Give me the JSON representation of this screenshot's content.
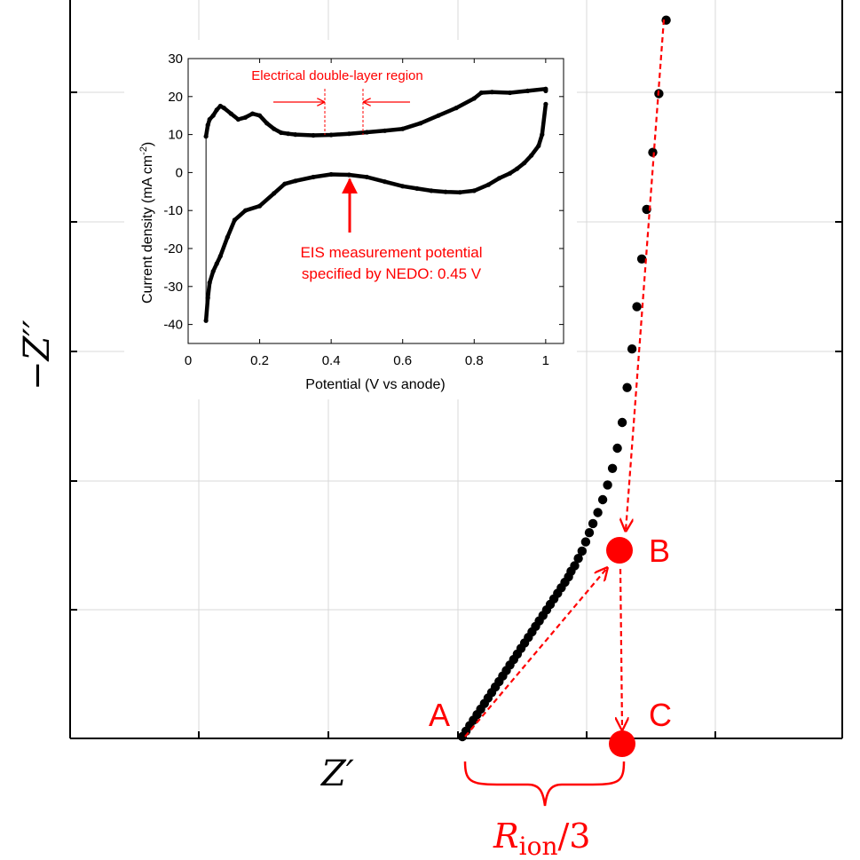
{
  "chart_data": [
    {
      "type": "scatter",
      "title": "",
      "xlabel": "Z′",
      "ylabel": "−Z′′",
      "grid": true,
      "legend": "none",
      "colors": {
        "data": "#000000",
        "accent": "#ff0000"
      },
      "series": [
        {
          "values": [
            [
              10.0,
              0.0
            ],
            [
              10.15,
              0.15
            ],
            [
              10.3,
              0.3
            ],
            [
              10.45,
              0.45
            ],
            [
              10.6,
              0.6
            ],
            [
              10.75,
              0.75
            ],
            [
              10.9,
              0.9
            ],
            [
              11.05,
              1.05
            ],
            [
              11.2,
              1.2
            ],
            [
              11.35,
              1.35
            ],
            [
              11.5,
              1.5
            ],
            [
              11.65,
              1.65
            ],
            [
              11.8,
              1.8
            ],
            [
              11.95,
              1.95
            ],
            [
              12.1,
              2.1
            ],
            [
              12.25,
              2.25
            ],
            [
              12.4,
              2.4
            ],
            [
              12.55,
              2.55
            ],
            [
              12.7,
              2.7
            ],
            [
              12.85,
              2.85
            ],
            [
              13.0,
              3.0
            ],
            [
              13.15,
              3.15
            ],
            [
              13.3,
              3.3
            ],
            [
              13.45,
              3.45
            ],
            [
              13.6,
              3.6
            ],
            [
              13.75,
              3.75
            ],
            [
              13.9,
              3.9
            ],
            [
              14.05,
              4.05
            ],
            [
              14.2,
              4.2
            ],
            [
              14.35,
              4.35
            ],
            [
              14.45,
              4.5
            ],
            [
              14.6,
              4.65
            ],
            [
              14.75,
              4.85
            ],
            [
              14.9,
              5.05
            ],
            [
              15.05,
              5.3
            ],
            [
              15.2,
              5.55
            ],
            [
              15.35,
              5.8
            ],
            [
              15.55,
              6.1
            ],
            [
              15.75,
              6.45
            ],
            [
              15.95,
              6.85
            ],
            [
              16.15,
              7.3
            ],
            [
              16.35,
              7.85
            ],
            [
              16.55,
              8.55
            ],
            [
              16.75,
              9.5
            ],
            [
              16.95,
              10.55
            ],
            [
              17.15,
              11.7
            ],
            [
              17.35,
              13.0
            ],
            [
              17.55,
              14.35
            ],
            [
              17.8,
              15.9
            ],
            [
              18.05,
              17.5
            ],
            [
              18.35,
              19.5
            ]
          ]
        }
      ],
      "points": [
        {
          "label": "A",
          "x": 10.0,
          "y": 0.0
        },
        {
          "label": "B",
          "x": 16.4,
          "y": 8.3
        },
        {
          "label": "C",
          "x": 16.5,
          "y": 0.0
        }
      ],
      "bracket_label": "R",
      "bracket_subscript": "ion",
      "bracket_suffix": "/3"
    },
    {
      "type": "line",
      "title": "",
      "xlabel": "Potential (V vs anode)",
      "ylabel": "Current density (mA cm",
      "ylabel_superscript": "-2",
      "ylabel_suffix": ")",
      "xlim": [
        0,
        1.05
      ],
      "ylim": [
        -45,
        30
      ],
      "x_ticks": [
        0,
        0.2,
        0.4,
        0.6,
        0.8,
        1
      ],
      "x_tick_labels": [
        "0",
        "0.2",
        "0.4",
        "0.6",
        "0.8",
        "1"
      ],
      "y_ticks": [
        30,
        20,
        10,
        0,
        -10,
        -20,
        -30,
        -40
      ],
      "y_tick_labels": [
        "30",
        "20",
        "10",
        "0",
        "-10",
        "-20",
        "-30",
        "-40"
      ],
      "grid": false,
      "series": [
        {
          "x": [
            0.05,
            0.055,
            0.06,
            0.07,
            0.08,
            0.09,
            0.1,
            0.12,
            0.14,
            0.16,
            0.18,
            0.2,
            0.22,
            0.24,
            0.26,
            0.28,
            0.3,
            0.35,
            0.4,
            0.45,
            0.5,
            0.55,
            0.6,
            0.65,
            0.7,
            0.75,
            0.8,
            0.82,
            0.85,
            0.9,
            0.95,
            1.0,
            1.0
          ],
          "y": [
            9.5,
            12.5,
            14.0,
            15.0,
            16.5,
            17.5,
            17.0,
            15.5,
            14.0,
            14.5,
            15.5,
            15.0,
            13.0,
            11.5,
            10.5,
            10.2,
            10.0,
            9.8,
            9.9,
            10.2,
            10.6,
            11.0,
            11.5,
            13.0,
            15.0,
            17.0,
            19.5,
            21.0,
            21.2,
            21.0,
            21.5,
            22.0,
            21.5
          ]
        },
        {
          "x": [
            1.0,
            0.99,
            0.98,
            0.96,
            0.94,
            0.92,
            0.9,
            0.87,
            0.84,
            0.8,
            0.76,
            0.72,
            0.68,
            0.64,
            0.6,
            0.55,
            0.5,
            0.45,
            0.4,
            0.35,
            0.3,
            0.27,
            0.24,
            0.2,
            0.16,
            0.13,
            0.11,
            0.09,
            0.08,
            0.07,
            0.06,
            0.055,
            0.05
          ],
          "y": [
            18.0,
            10.0,
            7.0,
            4.5,
            2.5,
            1.0,
            -0.2,
            -1.5,
            -3.2,
            -4.8,
            -5.2,
            -5.1,
            -4.8,
            -4.2,
            -3.6,
            -2.4,
            -1.2,
            -0.6,
            -0.5,
            -1.2,
            -2.2,
            -3.0,
            -5.5,
            -8.8,
            -10.0,
            -12.5,
            -17.0,
            -22.0,
            -24.0,
            -26.0,
            -29.0,
            -33.0,
            -39.0
          ]
        }
      ],
      "annotations": {
        "region_label": "Electrical double-layer region",
        "region_x": [
          0.38,
          0.49
        ],
        "eis_line1": "EIS measurement potential",
        "eis_line2": "specified by NEDO: 0.45 V",
        "eis_x": 0.45
      }
    }
  ]
}
